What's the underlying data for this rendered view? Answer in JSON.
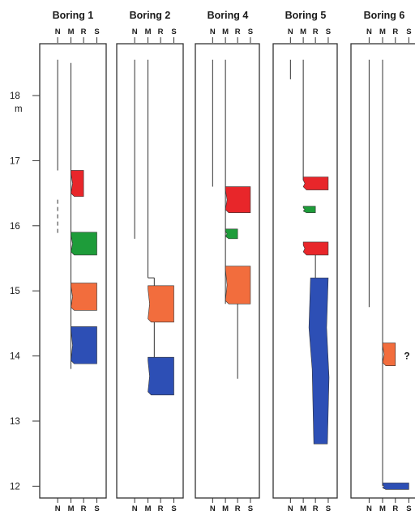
{
  "depth_axis": {
    "unit": "m",
    "ticks": [
      "18",
      "17",
      "16",
      "15",
      "14",
      "13",
      "12"
    ]
  },
  "column_labels": [
    "N",
    "M",
    "R",
    "S"
  ],
  "colors": {
    "red": "#e8262a",
    "orange": "#f26d3d",
    "green": "#1e9c3a",
    "blue": "#2d4fb5",
    "outline": "#333333"
  },
  "borings": [
    {
      "title": "Boring 1",
      "traces": [
        {
          "col": "N",
          "top": 18.55,
          "bottom": 16.85,
          "style": "solid"
        },
        {
          "col": "N",
          "top": 16.4,
          "bottom": 15.85,
          "style": "dashed"
        },
        {
          "col": "M",
          "top": 18.5,
          "bottom": 13.8,
          "style": "solid"
        }
      ],
      "units": [
        {
          "color": "red",
          "top": 16.85,
          "bottom": 16.45,
          "extent": "R"
        },
        {
          "color": "green",
          "top": 15.9,
          "bottom": 15.55,
          "extent": "S"
        },
        {
          "color": "orange",
          "top": 15.12,
          "bottom": 14.7,
          "extent": "S"
        },
        {
          "color": "blue",
          "top": 14.45,
          "bottom": 13.88,
          "extent": "S"
        }
      ],
      "note": ""
    },
    {
      "title": "Boring 2",
      "traces": [
        {
          "col": "N",
          "top": 18.55,
          "bottom": 15.8,
          "style": "solid"
        },
        {
          "col": "M",
          "top": 18.55,
          "bottom": 15.2,
          "style": "solid"
        },
        {
          "col": "M-R",
          "top": 15.2,
          "bottom": 13.4,
          "style": "solid"
        }
      ],
      "units": [
        {
          "color": "orange",
          "top": 15.08,
          "bottom": 14.52,
          "extent": "S"
        },
        {
          "color": "blue",
          "top": 13.98,
          "bottom": 13.4,
          "extent": "S"
        }
      ],
      "note": ""
    },
    {
      "title": "Boring 4",
      "traces": [
        {
          "col": "N",
          "top": 18.55,
          "bottom": 16.6,
          "style": "solid"
        },
        {
          "col": "M",
          "top": 18.55,
          "bottom": 14.8,
          "style": "solid"
        },
        {
          "col": "R",
          "top": 14.8,
          "bottom": 13.65,
          "style": "solid"
        }
      ],
      "units": [
        {
          "color": "red",
          "top": 16.6,
          "bottom": 16.2,
          "extent": "S"
        },
        {
          "color": "green",
          "top": 15.95,
          "bottom": 15.8,
          "extent": "R"
        },
        {
          "color": "orange",
          "top": 15.38,
          "bottom": 14.8,
          "extent": "S"
        }
      ],
      "note": ""
    },
    {
      "title": "Boring 5",
      "traces": [
        {
          "col": "N",
          "top": 18.55,
          "bottom": 18.25,
          "style": "solid"
        },
        {
          "col": "M",
          "top": 18.55,
          "bottom": 16.7,
          "style": "solid"
        },
        {
          "col": "R",
          "top": 15.55,
          "bottom": 12.75,
          "style": "solid"
        }
      ],
      "units": [
        {
          "color": "red",
          "top": 16.75,
          "bottom": 16.55,
          "extent": "S"
        },
        {
          "color": "green",
          "top": 16.3,
          "bottom": 16.2,
          "extent": "R"
        },
        {
          "color": "red",
          "top": 15.75,
          "bottom": 15.55,
          "extent": "S"
        },
        {
          "color": "blue",
          "top": 15.2,
          "bottom": 12.65,
          "extent": "S"
        }
      ],
      "note": ""
    },
    {
      "title": "Boring 6",
      "traces": [
        {
          "col": "N",
          "top": 18.55,
          "bottom": 14.75,
          "style": "solid"
        },
        {
          "col": "M",
          "top": 18.55,
          "bottom": 12.0,
          "style": "solid"
        }
      ],
      "units": [
        {
          "color": "orange",
          "top": 14.2,
          "bottom": 13.85,
          "extent": "R"
        },
        {
          "color": "blue",
          "top": 12.05,
          "bottom": 11.95,
          "extent": "S"
        }
      ],
      "note": "?"
    }
  ]
}
